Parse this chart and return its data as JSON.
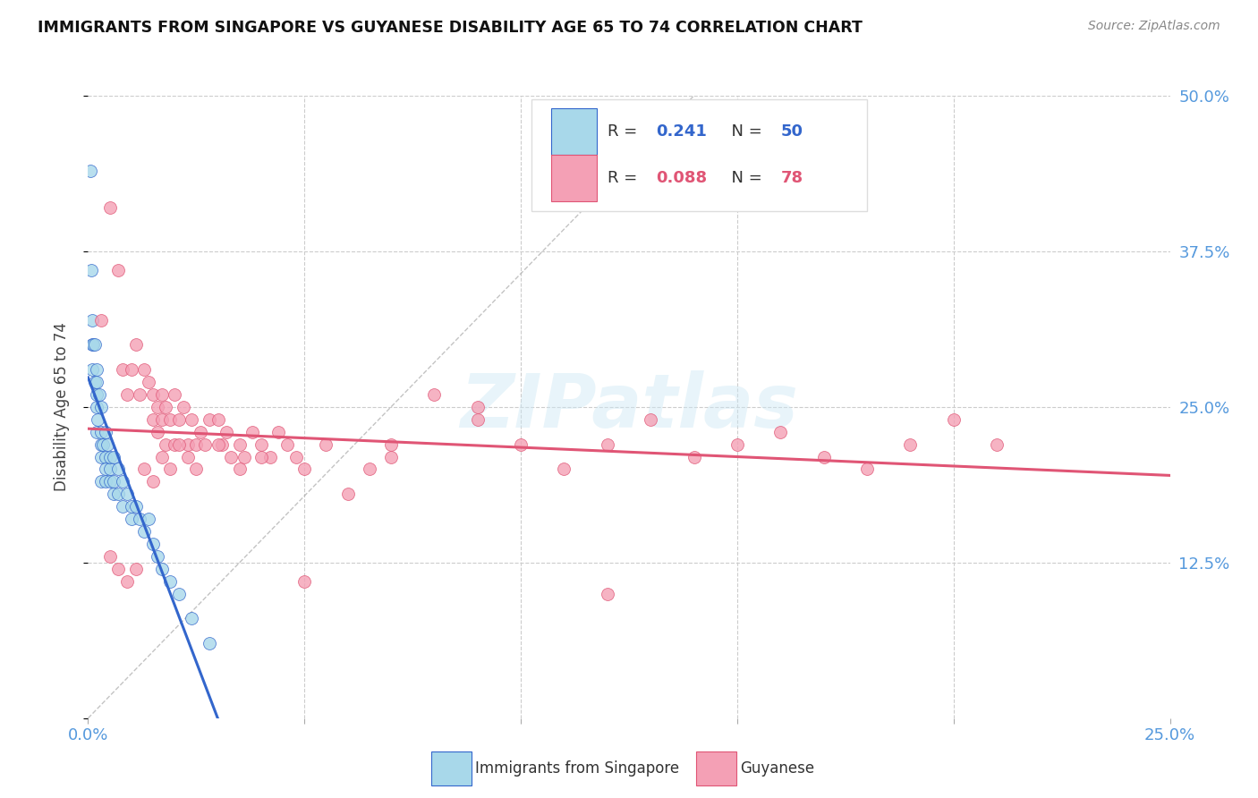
{
  "title": "IMMIGRANTS FROM SINGAPORE VS GUYANESE DISABILITY AGE 65 TO 74 CORRELATION CHART",
  "source": "Source: ZipAtlas.com",
  "ylabel": "Disability Age 65 to 74",
  "r_singapore": 0.241,
  "n_singapore": 50,
  "r_guyanese": 0.088,
  "n_guyanese": 78,
  "xlim": [
    0.0,
    0.25
  ],
  "ylim": [
    0.0,
    0.5
  ],
  "color_singapore": "#a8d8ea",
  "color_guyanese": "#f4a0b5",
  "color_trendline_singapore": "#3366cc",
  "color_trendline_guyanese": "#e05575",
  "color_axis_labels": "#5599dd",
  "watermark": "ZIPatlas",
  "legend_label_singapore": "Immigrants from Singapore",
  "legend_label_guyanese": "Guyanese",
  "singapore_x": [
    0.0005,
    0.0008,
    0.001,
    0.001,
    0.001,
    0.0012,
    0.0015,
    0.0015,
    0.002,
    0.002,
    0.002,
    0.002,
    0.002,
    0.0022,
    0.0025,
    0.003,
    0.003,
    0.003,
    0.003,
    0.003,
    0.0035,
    0.004,
    0.004,
    0.004,
    0.004,
    0.0045,
    0.005,
    0.005,
    0.005,
    0.006,
    0.006,
    0.006,
    0.007,
    0.007,
    0.008,
    0.008,
    0.009,
    0.01,
    0.01,
    0.011,
    0.012,
    0.013,
    0.014,
    0.015,
    0.016,
    0.017,
    0.019,
    0.021,
    0.024,
    0.028
  ],
  "singapore_y": [
    0.44,
    0.36,
    0.32,
    0.3,
    0.28,
    0.3,
    0.27,
    0.3,
    0.26,
    0.28,
    0.25,
    0.27,
    0.23,
    0.24,
    0.26,
    0.25,
    0.23,
    0.22,
    0.21,
    0.19,
    0.22,
    0.23,
    0.21,
    0.2,
    0.19,
    0.22,
    0.2,
    0.21,
    0.19,
    0.21,
    0.19,
    0.18,
    0.2,
    0.18,
    0.19,
    0.17,
    0.18,
    0.17,
    0.16,
    0.17,
    0.16,
    0.15,
    0.16,
    0.14,
    0.13,
    0.12,
    0.11,
    0.1,
    0.08,
    0.06
  ],
  "guyanese_x": [
    0.003,
    0.005,
    0.007,
    0.008,
    0.009,
    0.01,
    0.011,
    0.012,
    0.013,
    0.014,
    0.015,
    0.015,
    0.016,
    0.016,
    0.017,
    0.017,
    0.018,
    0.018,
    0.019,
    0.02,
    0.02,
    0.021,
    0.022,
    0.023,
    0.024,
    0.025,
    0.026,
    0.027,
    0.028,
    0.03,
    0.031,
    0.032,
    0.033,
    0.035,
    0.036,
    0.038,
    0.04,
    0.042,
    0.044,
    0.046,
    0.048,
    0.05,
    0.055,
    0.06,
    0.065,
    0.07,
    0.08,
    0.09,
    0.1,
    0.11,
    0.12,
    0.13,
    0.14,
    0.15,
    0.16,
    0.17,
    0.18,
    0.19,
    0.2,
    0.21,
    0.013,
    0.015,
    0.017,
    0.019,
    0.021,
    0.023,
    0.025,
    0.03,
    0.035,
    0.04,
    0.005,
    0.007,
    0.009,
    0.011,
    0.05,
    0.07,
    0.09,
    0.12
  ],
  "guyanese_y": [
    0.32,
    0.41,
    0.36,
    0.28,
    0.26,
    0.28,
    0.3,
    0.26,
    0.28,
    0.27,
    0.26,
    0.24,
    0.25,
    0.23,
    0.26,
    0.24,
    0.25,
    0.22,
    0.24,
    0.26,
    0.22,
    0.24,
    0.25,
    0.22,
    0.24,
    0.22,
    0.23,
    0.22,
    0.24,
    0.24,
    0.22,
    0.23,
    0.21,
    0.22,
    0.21,
    0.23,
    0.22,
    0.21,
    0.23,
    0.22,
    0.21,
    0.2,
    0.22,
    0.18,
    0.2,
    0.22,
    0.26,
    0.24,
    0.22,
    0.2,
    0.22,
    0.24,
    0.21,
    0.22,
    0.23,
    0.21,
    0.2,
    0.22,
    0.24,
    0.22,
    0.2,
    0.19,
    0.21,
    0.2,
    0.22,
    0.21,
    0.2,
    0.22,
    0.2,
    0.21,
    0.13,
    0.12,
    0.11,
    0.12,
    0.11,
    0.21,
    0.25,
    0.1
  ]
}
